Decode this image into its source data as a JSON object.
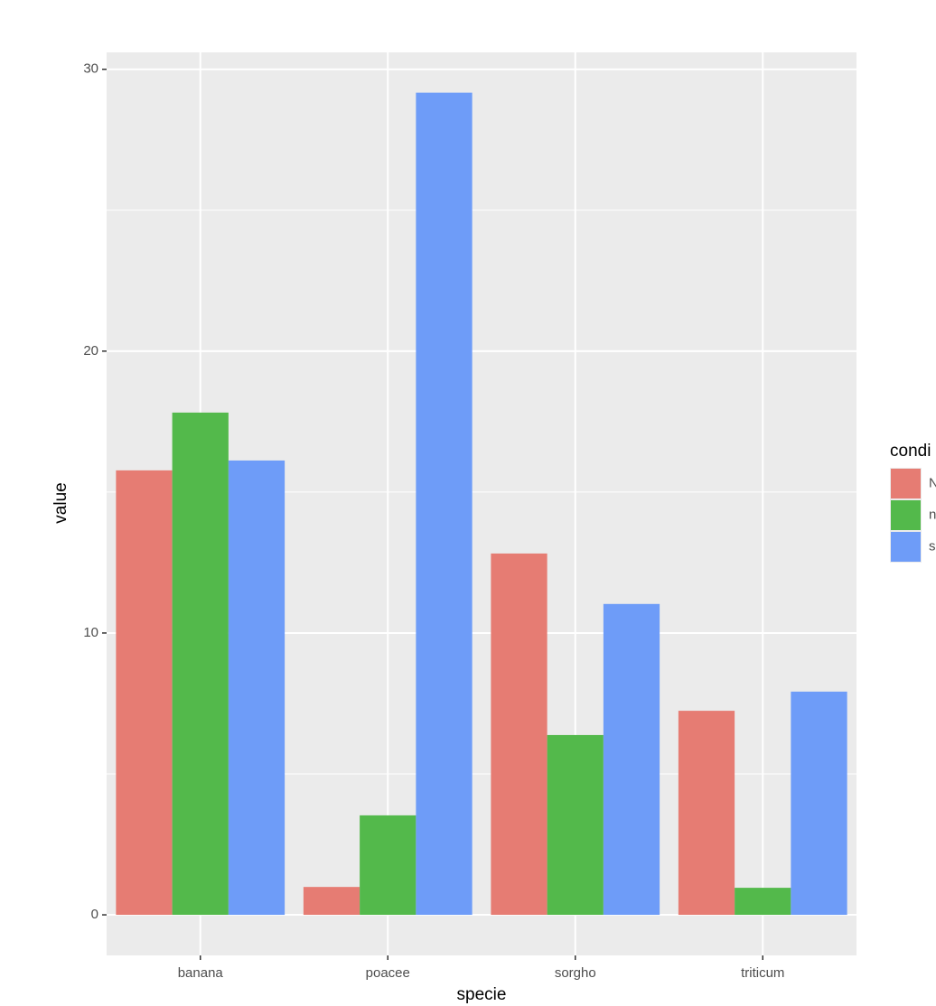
{
  "chart_data": {
    "type": "bar",
    "x_label": "specie",
    "y_label": "value",
    "legend_title": "condi",
    "categories": [
      "banana",
      "poacee",
      "sorgho",
      "triticum"
    ],
    "series": [
      {
        "name": "N",
        "color": "#e67c73",
        "values": [
          15.77,
          0.99,
          12.82,
          7.24
        ]
      },
      {
        "name": "n",
        "color": "#53b94b",
        "values": [
          17.82,
          3.53,
          6.38,
          0.96
        ]
      },
      {
        "name": "s",
        "color": "#6e9cf8",
        "values": [
          16.12,
          29.17,
          11.03,
          7.92
        ]
      }
    ],
    "ylim": [
      -1.44,
      30.6
    ],
    "yticks": [
      0,
      10,
      20,
      30
    ],
    "yminor": [
      5,
      15,
      25
    ],
    "grid": true,
    "legend": "right"
  }
}
